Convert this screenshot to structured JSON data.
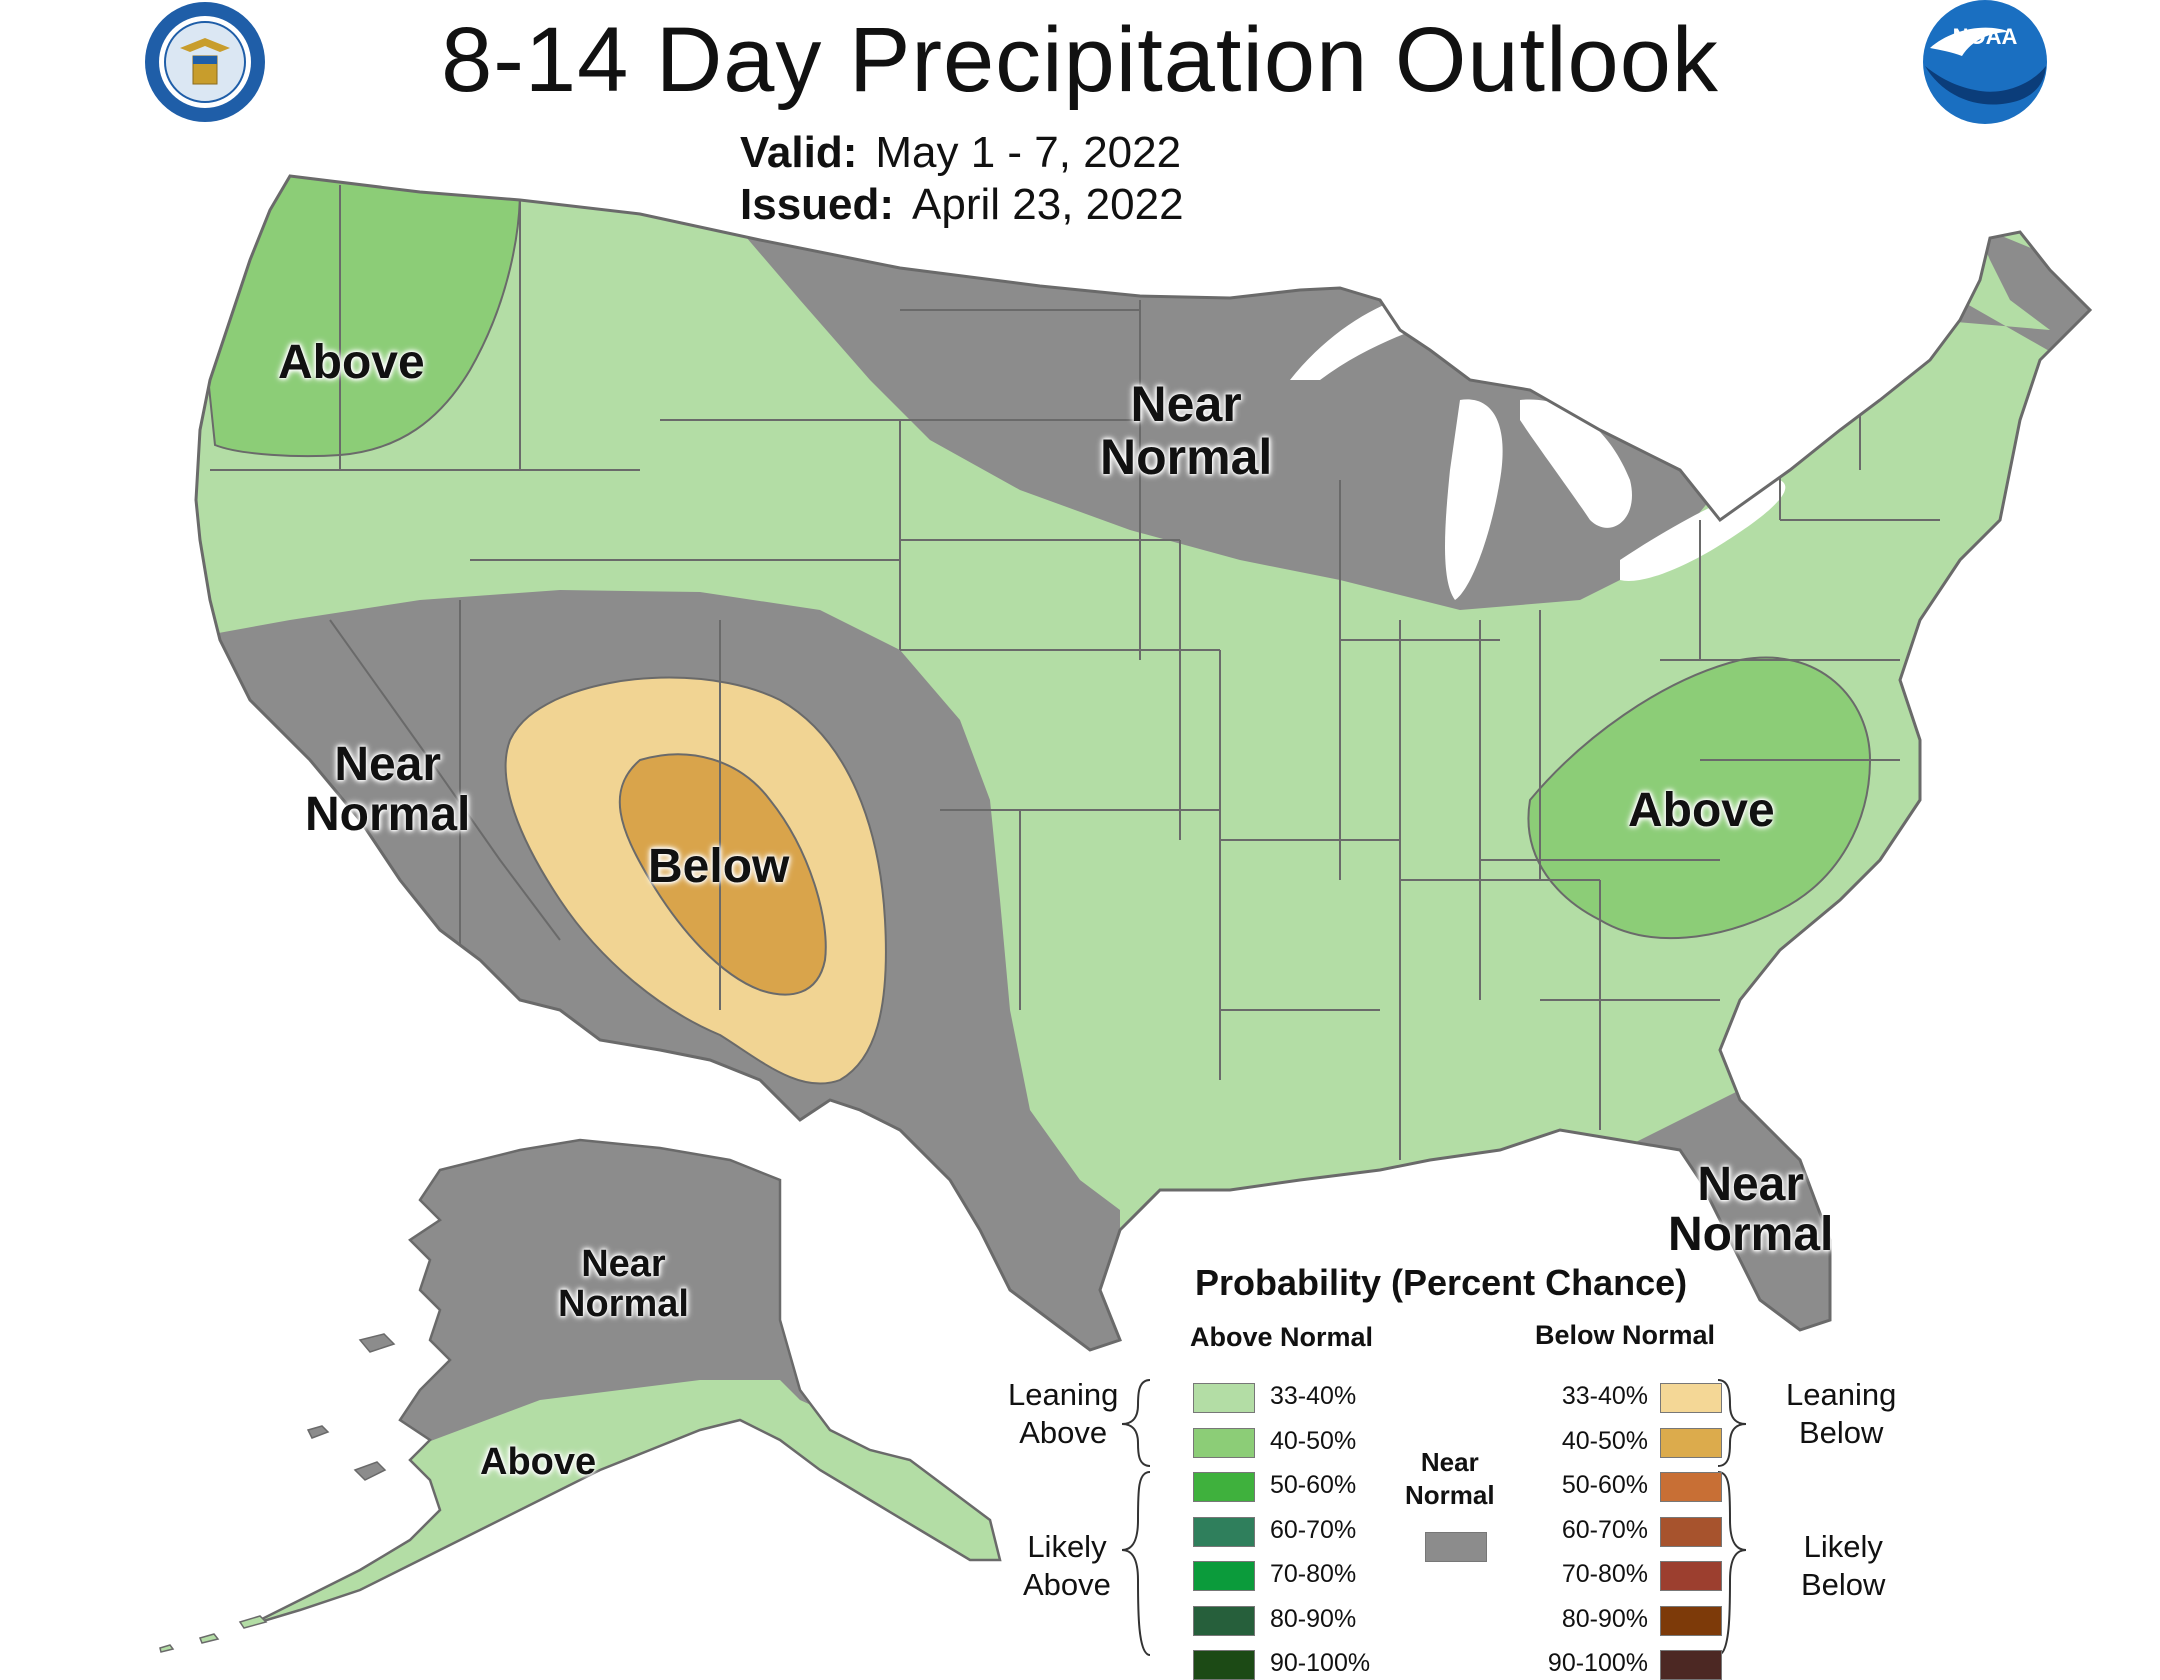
{
  "header": {
    "title": "8-14 Day Precipitation Outlook",
    "valid_label": "Valid:",
    "valid_value": "May 1 - 7, 2022",
    "issued_label": "Issued:",
    "issued_value": "April 23, 2022"
  },
  "logos": {
    "left": "doc-seal-icon",
    "right_text": "NOAA"
  },
  "colors": {
    "land_default": "#f4f4f4",
    "near_normal": "#8c8c8c",
    "above_33_40": "#b3dda5",
    "above_40_50": "#8ccd77",
    "below_33_40": "#f1d493",
    "below_40_50": "#d9a44b",
    "border": "#6a6a6a",
    "lakes": "#ffffff"
  },
  "map_labels": {
    "pnw_above": "Above",
    "north_near": [
      "Near",
      "Normal"
    ],
    "west_near": [
      "Near",
      "Normal"
    ],
    "sw_below": "Below",
    "se_above": "Above",
    "fl_near": [
      "Near",
      "Normal"
    ],
    "ak_near": [
      "Near",
      "Normal"
    ],
    "ak_above": "Above"
  },
  "legend": {
    "title": "Probability (Percent Chance)",
    "above_header": "Above Normal",
    "below_header": "Below Normal",
    "near_label": [
      "Near",
      "Normal"
    ],
    "near_color": "#8c8c8c",
    "leaning_above": [
      "Leaning",
      "Above"
    ],
    "likely_above": [
      "Likely",
      "Above"
    ],
    "leaning_below": [
      "Leaning",
      "Below"
    ],
    "likely_below": [
      "Likely",
      "Below"
    ],
    "above_items": [
      {
        "label": "33-40%",
        "color": "#b3dda5"
      },
      {
        "label": "40-50%",
        "color": "#8ccd77"
      },
      {
        "label": "50-60%",
        "color": "#3fb13d"
      },
      {
        "label": "60-70%",
        "color": "#2f7f5c"
      },
      {
        "label": "70-80%",
        "color": "#0b9b3b"
      },
      {
        "label": "80-90%",
        "color": "#265f3b"
      },
      {
        "label": "90-100%",
        "color": "#1c4a15"
      }
    ],
    "below_items": [
      {
        "label": "33-40%",
        "color": "#f4d796"
      },
      {
        "label": "40-50%",
        "color": "#dcab4c"
      },
      {
        "label": "50-60%",
        "color": "#c86f35"
      },
      {
        "label": "60-70%",
        "color": "#a7532d"
      },
      {
        "label": "70-80%",
        "color": "#9c3f2f"
      },
      {
        "label": "80-90%",
        "color": "#7d3a09"
      },
      {
        "label": "90-100%",
        "color": "#4c2823"
      }
    ]
  }
}
